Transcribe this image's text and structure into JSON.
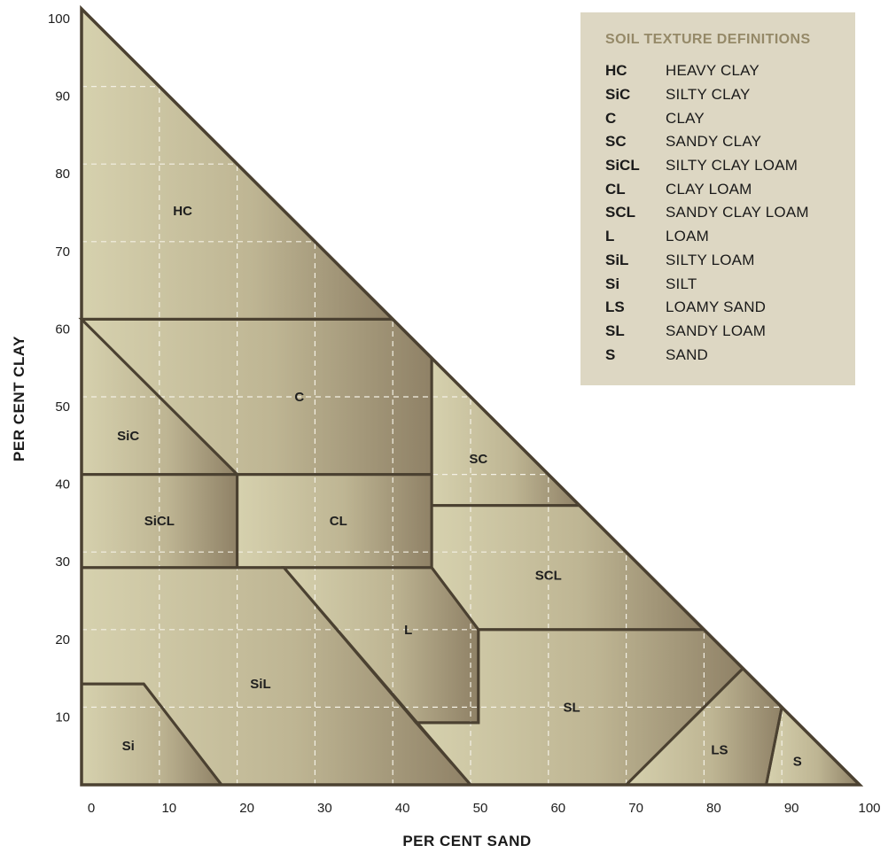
{
  "chart_data": {
    "type": "ternary-zones",
    "xlabel": "PER CENT  SAND",
    "ylabel": "PER CENT  CLAY",
    "xlim": [
      0,
      100
    ],
    "ylim": [
      0,
      100
    ],
    "x_ticks": [
      "0",
      "10",
      "20",
      "30",
      "40",
      "50",
      "60",
      "70",
      "80",
      "90",
      "100"
    ],
    "y_ticks": [
      "10",
      "20",
      "30",
      "40",
      "50",
      "60",
      "70",
      "80",
      "90",
      "100"
    ],
    "grid": true,
    "regions": [
      {
        "code": "HC",
        "label_at": [
          13,
          74
        ],
        "boundary": [
          [
            0,
            100
          ],
          [
            0,
            60
          ],
          [
            40,
            60
          ]
        ]
      },
      {
        "code": "C",
        "label_at": [
          28,
          50
        ],
        "boundary": [
          [
            0,
            60
          ],
          [
            40,
            60
          ],
          [
            45,
            55
          ],
          [
            45,
            40
          ],
          [
            20,
            40
          ]
        ]
      },
      {
        "code": "SiC",
        "label_at": [
          6,
          45
        ],
        "boundary": [
          [
            0,
            60
          ],
          [
            20,
            40
          ],
          [
            0,
            40
          ]
        ]
      },
      {
        "code": "SiCL",
        "label_at": [
          10,
          34
        ],
        "boundary": [
          [
            0,
            40
          ],
          [
            20,
            40
          ],
          [
            20,
            28
          ],
          [
            0,
            28
          ]
        ]
      },
      {
        "code": "CL",
        "label_at": [
          33,
          34
        ],
        "boundary": [
          [
            20,
            40
          ],
          [
            45,
            40
          ],
          [
            45,
            28
          ],
          [
            20,
            28
          ]
        ]
      },
      {
        "code": "SC",
        "label_at": [
          51,
          42
        ],
        "boundary": [
          [
            45,
            55
          ],
          [
            64,
            36
          ],
          [
            45,
            36
          ]
        ]
      },
      {
        "code": "SCL",
        "label_at": [
          60,
          27
        ],
        "boundary": [
          [
            45,
            36
          ],
          [
            64,
            36
          ],
          [
            80,
            20
          ],
          [
            51,
            20
          ],
          [
            45,
            28
          ]
        ]
      },
      {
        "code": "L",
        "label_at": [
          42,
          20
        ],
        "boundary": [
          [
            26,
            28
          ],
          [
            45,
            28
          ],
          [
            51,
            20
          ],
          [
            51,
            8
          ],
          [
            43,
            8
          ]
        ]
      },
      {
        "code": "SiL",
        "label_at": [
          23,
          13
        ],
        "boundary": [
          [
            0,
            28
          ],
          [
            26,
            28
          ],
          [
            50,
            0
          ],
          [
            18,
            0
          ],
          [
            8,
            13
          ],
          [
            0,
            13
          ]
        ]
      },
      {
        "code": "Si",
        "label_at": [
          6,
          5
        ],
        "boundary": [
          [
            0,
            13
          ],
          [
            8,
            13
          ],
          [
            18,
            0
          ],
          [
            0,
            0
          ]
        ]
      },
      {
        "code": "SL",
        "label_at": [
          63,
          10
        ],
        "boundary": [
          [
            51,
            20
          ],
          [
            80,
            20
          ],
          [
            85,
            15
          ],
          [
            70,
            0
          ],
          [
            50,
            0
          ],
          [
            43,
            8
          ],
          [
            51,
            8
          ]
        ]
      },
      {
        "code": "LS",
        "label_at": [
          82,
          4.5
        ],
        "boundary": [
          [
            70,
            0
          ],
          [
            85,
            15
          ],
          [
            90,
            10
          ],
          [
            88,
            0
          ]
        ]
      },
      {
        "code": "S",
        "label_at": [
          92,
          3
        ],
        "boundary": [
          [
            88,
            0
          ],
          [
            90,
            10
          ],
          [
            100,
            0
          ]
        ]
      }
    ]
  },
  "legend": {
    "title": "SOIL TEXTURE DEFINITIONS",
    "items": [
      {
        "code": "HC",
        "name": "HEAVY CLAY"
      },
      {
        "code": "SiC",
        "name": "SILTY CLAY"
      },
      {
        "code": "C",
        "name": "CLAY"
      },
      {
        "code": "SC",
        "name": "SANDY CLAY"
      },
      {
        "code": "SiCL",
        "name": "SILTY CLAY LOAM"
      },
      {
        "code": "CL",
        "name": "CLAY LOAM"
      },
      {
        "code": "SCL",
        "name": "SANDY CLAY LOAM"
      },
      {
        "code": "L",
        "name": "LOAM"
      },
      {
        "code": "SiL",
        "name": "SILTY LOAM"
      },
      {
        "code": "Si",
        "name": "SILT"
      },
      {
        "code": "LS",
        "name": "LOAMY SAND"
      },
      {
        "code": "SL",
        "name": "SANDY LOAM"
      },
      {
        "code": "S",
        "name": "SAND"
      }
    ]
  },
  "colors": {
    "zone_light": "#d6d1ae",
    "zone_dark": "#8f8166",
    "border": "#4b4131",
    "grid": "#f3f0e4",
    "legend_bg": "#ddd7c3",
    "legend_title": "#958968"
  }
}
